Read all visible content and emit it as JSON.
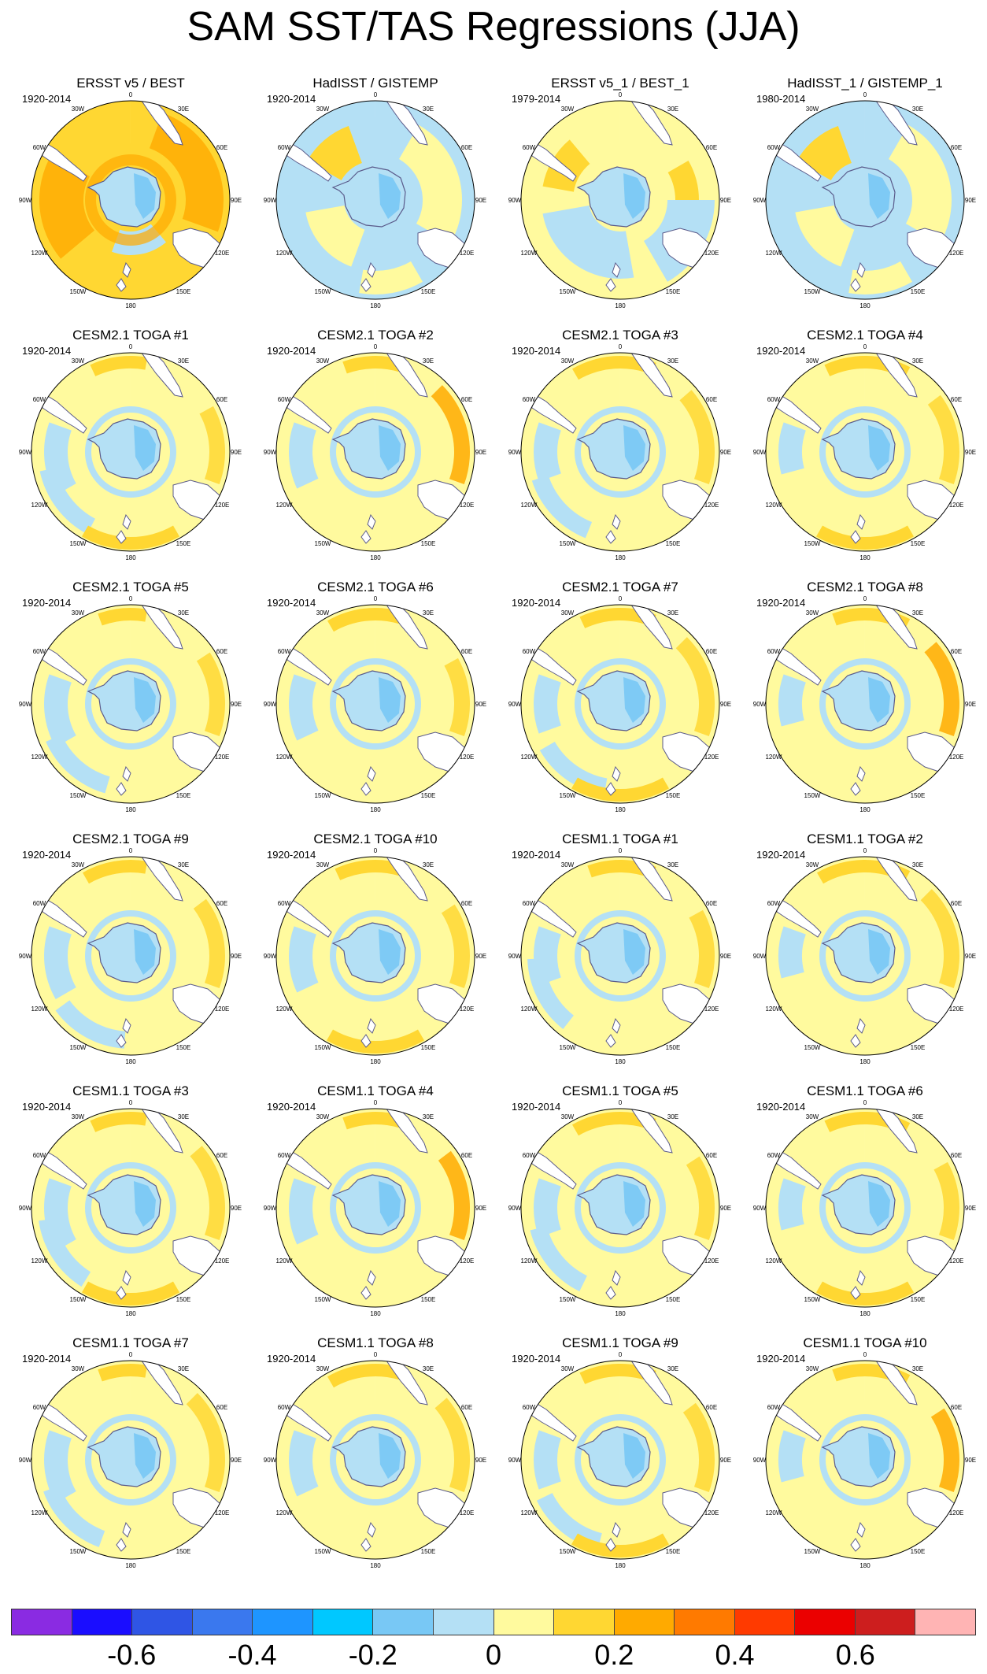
{
  "title": "SAM SST/TAS Regressions (JJA)",
  "longitude_labels": [
    "0",
    "30E",
    "60E",
    "90E",
    "120E",
    "150E",
    "180",
    "150W",
    "120W",
    "90W",
    "60W",
    "30W"
  ],
  "colorbar": {
    "colors": [
      "#8a2be2",
      "#1a0dff",
      "#2f55e5",
      "#3a78ee",
      "#1e95ff",
      "#00c8ff",
      "#78c8f5",
      "#b4e0f5",
      "#fffa9e",
      "#ffd732",
      "#ffaa00",
      "#ff7a00",
      "#ff3a00",
      "#eb0000",
      "#cd1e1e",
      "#ffb4b4"
    ],
    "tick_labels": [
      "-0.6",
      "-0.4",
      "-0.2",
      "0",
      "0.2",
      "0.4",
      "0.6"
    ]
  },
  "panels": [
    {
      "title": "ERSST v5 / BEST",
      "period": "1920-2014",
      "pattern": "obs_warm"
    },
    {
      "title": "HadISST / GISTEMP",
      "period": "1920-2014",
      "pattern": "obs_cool"
    },
    {
      "title": "ERSST v5_1 / BEST_1",
      "period": "1979-2014",
      "pattern": "obs_mixed"
    },
    {
      "title": "HadISST_1 / GISTEMP_1",
      "period": "1980-2014",
      "pattern": "obs_cool"
    },
    {
      "title": "CESM2.1 TOGA #1",
      "period": "1920-2014",
      "pattern": "model"
    },
    {
      "title": "CESM2.1 TOGA #2",
      "period": "1920-2014",
      "pattern": "model"
    },
    {
      "title": "CESM2.1 TOGA #3",
      "period": "1920-2014",
      "pattern": "model"
    },
    {
      "title": "CESM2.1 TOGA #4",
      "period": "1920-2014",
      "pattern": "model"
    },
    {
      "title": "CESM2.1 TOGA #5",
      "period": "1920-2014",
      "pattern": "model"
    },
    {
      "title": "CESM2.1 TOGA #6",
      "period": "1920-2014",
      "pattern": "model"
    },
    {
      "title": "CESM2.1 TOGA #7",
      "period": "1920-2014",
      "pattern": "model"
    },
    {
      "title": "CESM2.1 TOGA #8",
      "period": "1920-2014",
      "pattern": "model"
    },
    {
      "title": "CESM2.1 TOGA #9",
      "period": "1920-2014",
      "pattern": "model"
    },
    {
      "title": "CESM2.1 TOGA #10",
      "period": "1920-2014",
      "pattern": "model"
    },
    {
      "title": "CESM1.1 TOGA #1",
      "period": "1920-2014",
      "pattern": "model"
    },
    {
      "title": "CESM1.1 TOGA #2",
      "period": "1920-2014",
      "pattern": "model"
    },
    {
      "title": "CESM1.1 TOGA #3",
      "period": "1920-2014",
      "pattern": "model"
    },
    {
      "title": "CESM1.1 TOGA #4",
      "period": "1920-2014",
      "pattern": "model"
    },
    {
      "title": "CESM1.1 TOGA #5",
      "period": "1920-2014",
      "pattern": "model"
    },
    {
      "title": "CESM1.1 TOGA #6",
      "period": "1920-2014",
      "pattern": "model"
    },
    {
      "title": "CESM1.1 TOGA #7",
      "period": "1920-2014",
      "pattern": "model"
    },
    {
      "title": "CESM1.1 TOGA #8",
      "period": "1920-2014",
      "pattern": "model"
    },
    {
      "title": "CESM1.1 TOGA #9",
      "period": "1920-2014",
      "pattern": "model"
    },
    {
      "title": "CESM1.1 TOGA #10",
      "period": "1920-2014",
      "pattern": "model"
    }
  ]
}
